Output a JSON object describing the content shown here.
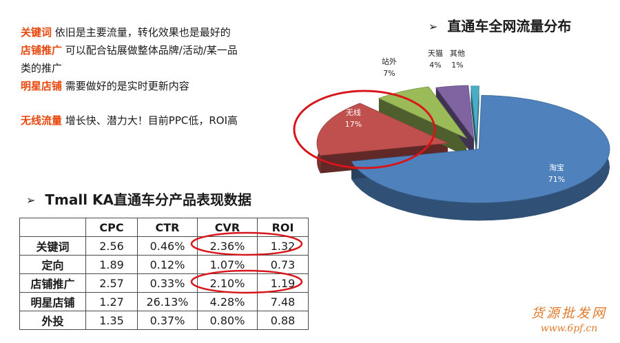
{
  "notes": [
    {
      "keyword": "关键词",
      "text": "依旧是主要流量，转化效果也是最好的"
    },
    {
      "keyword": "店铺推广",
      "text": "可以配合钻展做整体品牌/活动/某一品类的推广"
    },
    {
      "keyword": "明星店铺",
      "text": "需要做好的是实时更新内容"
    },
    {
      "keyword": "无线流量",
      "text": "增长快、潜力大！目前PPC低，ROI高"
    }
  ],
  "pie_heading": {
    "arrow": "➢",
    "title": "直通车全网流量分布"
  },
  "table_heading": {
    "arrow": "➢",
    "title": "Tmall KA直通车分产品表现数据"
  },
  "table": {
    "columns": [
      "",
      "CPC",
      "CTR",
      "CVR",
      "ROI"
    ],
    "rows": [
      [
        "关键词",
        "2.56",
        "0.46%",
        "2.36%",
        "1.32"
      ],
      [
        "定向",
        "1.89",
        "0.12%",
        "1.07%",
        "0.73"
      ],
      [
        "店铺推广",
        "2.57",
        "0.33%",
        "2.10%",
        "1.19"
      ],
      [
        "明星店铺",
        "1.27",
        "26.13%",
        "4.28%",
        "7.48"
      ],
      [
        "外投",
        "1.35",
        "0.37%",
        "0.80%",
        "0.88"
      ]
    ]
  },
  "chart_data": {
    "type": "pie",
    "title": "直通车全网流量分布",
    "slices": [
      {
        "label": "淘宝",
        "value": 71,
        "text": "71%",
        "color": "#4f81bd"
      },
      {
        "label": "无线",
        "value": 17,
        "text": "17%",
        "color": "#c0504d"
      },
      {
        "label": "站外",
        "value": 7,
        "text": "7%",
        "color": "#9bbb59"
      },
      {
        "label": "天猫",
        "value": 4,
        "text": "4%",
        "color": "#8064a2"
      },
      {
        "label": "其他",
        "value": 1,
        "text": "1%",
        "color": "#4bacc6"
      }
    ]
  },
  "colors": {
    "keyword": "#e8470c",
    "highlight_ring": "#d7161b",
    "watermark": "#e07a2a"
  },
  "watermark": {
    "title": "货源批发网",
    "url": "www.6pf.cn"
  }
}
